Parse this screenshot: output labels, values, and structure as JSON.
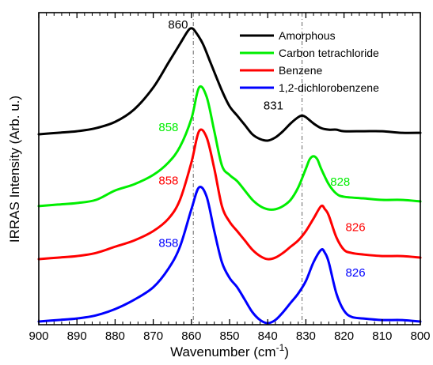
{
  "chart_data": {
    "type": "line",
    "xlabel": "Wavenumber (cm",
    "xlabel_sup": "-1",
    "xlabel_end": ")",
    "ylabel": "IRRAS Intensity (Arb. u.)",
    "xlim": [
      900,
      800
    ],
    "x_ticks": [
      "900",
      "890",
      "880",
      "870",
      "860",
      "850",
      "840",
      "830",
      "820",
      "810",
      "800"
    ],
    "y_ticks_labeled": false,
    "grid": false,
    "legend_position": "top-right",
    "reference_lines": [
      859.5,
      831
    ],
    "series": [
      {
        "name": "Amorphous",
        "color": "#000000",
        "x": [
          900,
          895,
          890,
          885,
          880,
          875,
          870,
          866,
          863,
          861,
          860,
          859,
          857,
          855,
          852,
          850,
          848,
          846,
          844,
          842,
          840,
          838,
          836,
          834,
          832,
          831,
          830,
          828,
          826,
          824,
          822,
          820,
          815,
          810,
          805,
          800
        ],
        "y": [
          0.61,
          0.615,
          0.62,
          0.63,
          0.65,
          0.69,
          0.76,
          0.84,
          0.9,
          0.94,
          0.95,
          0.94,
          0.9,
          0.84,
          0.75,
          0.7,
          0.67,
          0.64,
          0.61,
          0.595,
          0.59,
          0.6,
          0.62,
          0.645,
          0.665,
          0.67,
          0.665,
          0.645,
          0.63,
          0.625,
          0.625,
          0.62,
          0.62,
          0.62,
          0.615,
          0.615
        ]
      },
      {
        "name": "Carbon tetrachloride",
        "color": "#00ee00",
        "x": [
          900,
          895,
          890,
          885,
          880,
          875,
          870,
          866,
          863,
          860,
          858,
          856,
          854,
          852,
          850,
          848,
          846,
          844,
          842,
          840,
          838,
          836,
          834,
          832,
          830,
          829,
          828,
          827,
          826,
          824,
          822,
          820,
          815,
          810,
          805,
          800
        ],
        "y": [
          0.38,
          0.385,
          0.39,
          0.4,
          0.43,
          0.45,
          0.48,
          0.52,
          0.57,
          0.66,
          0.76,
          0.73,
          0.62,
          0.51,
          0.48,
          0.46,
          0.43,
          0.4,
          0.38,
          0.37,
          0.37,
          0.38,
          0.4,
          0.44,
          0.5,
          0.53,
          0.54,
          0.53,
          0.5,
          0.45,
          0.42,
          0.41,
          0.405,
          0.4,
          0.4,
          0.395
        ]
      },
      {
        "name": "Benzene",
        "color": "#ff0000",
        "x": [
          900,
          895,
          890,
          885,
          880,
          875,
          870,
          866,
          863,
          860,
          858,
          856,
          854,
          852,
          850,
          848,
          846,
          844,
          842,
          840,
          838,
          836,
          834,
          832,
          830,
          828,
          826,
          825,
          824,
          822,
          820,
          818,
          815,
          810,
          805,
          800
        ],
        "y": [
          0.21,
          0.215,
          0.22,
          0.23,
          0.25,
          0.27,
          0.3,
          0.34,
          0.4,
          0.52,
          0.62,
          0.6,
          0.5,
          0.38,
          0.33,
          0.3,
          0.27,
          0.24,
          0.22,
          0.21,
          0.215,
          0.23,
          0.25,
          0.27,
          0.3,
          0.34,
          0.38,
          0.37,
          0.35,
          0.28,
          0.24,
          0.23,
          0.225,
          0.22,
          0.22,
          0.215
        ]
      },
      {
        "name": "1,2-dichlorobenzene",
        "color": "#0000ff",
        "x": [
          900,
          895,
          890,
          885,
          880,
          875,
          870,
          866,
          863,
          860,
          858,
          856,
          854,
          852,
          850,
          848,
          846,
          844,
          842,
          840,
          838,
          836,
          834,
          832,
          830,
          828,
          826,
          825,
          824,
          822,
          820,
          818,
          815,
          810,
          805,
          800
        ],
        "y": [
          0.01,
          0.015,
          0.02,
          0.03,
          0.05,
          0.08,
          0.12,
          0.18,
          0.25,
          0.37,
          0.44,
          0.41,
          0.3,
          0.2,
          0.15,
          0.12,
          0.08,
          0.04,
          0.015,
          0.005,
          0.015,
          0.04,
          0.07,
          0.1,
          0.14,
          0.2,
          0.24,
          0.23,
          0.2,
          0.1,
          0.045,
          0.025,
          0.02,
          0.015,
          0.015,
          0.01
        ]
      }
    ],
    "annotations": [
      {
        "text": "860",
        "x": 863.5,
        "y": 0.95,
        "color": "#000000"
      },
      {
        "text": "831",
        "x": 838.5,
        "y": 0.69,
        "color": "#000000"
      },
      {
        "text": "858",
        "x": 866,
        "y": 0.62,
        "color": "#00ee00"
      },
      {
        "text": "828",
        "x": 821,
        "y": 0.445,
        "color": "#00ee00"
      },
      {
        "text": "858",
        "x": 866,
        "y": 0.45,
        "color": "#ff0000"
      },
      {
        "text": "826",
        "x": 817,
        "y": 0.3,
        "color": "#ff0000"
      },
      {
        "text": "858",
        "x": 866,
        "y": 0.25,
        "color": "#0000ff"
      },
      {
        "text": "826",
        "x": 817,
        "y": 0.155,
        "color": "#0000ff"
      }
    ]
  }
}
